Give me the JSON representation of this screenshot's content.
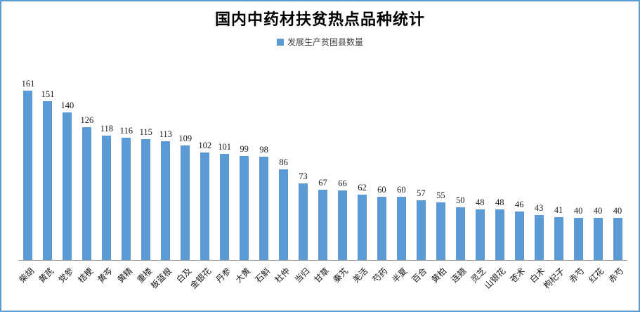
{
  "chart_data": {
    "type": "bar",
    "title": "国内中药材扶贫热点品种统计",
    "legend": "发展生产贫困县数量",
    "categories": [
      "柴胡",
      "黄芪",
      "党参",
      "桔梗",
      "黄芩",
      "黄精",
      "重楼",
      "板蓝根",
      "白及",
      "金银花",
      "丹参",
      "大黄",
      "石斛",
      "杜仲",
      "当归",
      "甘草",
      "秦艽",
      "羌活",
      "芍药",
      "半夏",
      "百合",
      "黄柏",
      "连翘",
      "灵芝",
      "山银花",
      "苍术",
      "白术",
      "枸杞子",
      "赤芍",
      "红花",
      "赤芍"
    ],
    "values": [
      161,
      151,
      140,
      126,
      118,
      116,
      115,
      113,
      109,
      102,
      101,
      99,
      98,
      86,
      73,
      67,
      66,
      62,
      60,
      60,
      57,
      55,
      50,
      48,
      48,
      46,
      43,
      41,
      40,
      40,
      40
    ],
    "xlabel": "",
    "ylabel": "",
    "ylim": [
      0,
      170
    ],
    "grid": false,
    "legend_position": "top-center",
    "data_labels": true,
    "x_label_rotation_deg": 45,
    "bar_color": "#5b9bd5",
    "frame_border_color": "#5b9bd5",
    "axis_line_color": "#959595",
    "text_color": "#1a1a1a"
  }
}
